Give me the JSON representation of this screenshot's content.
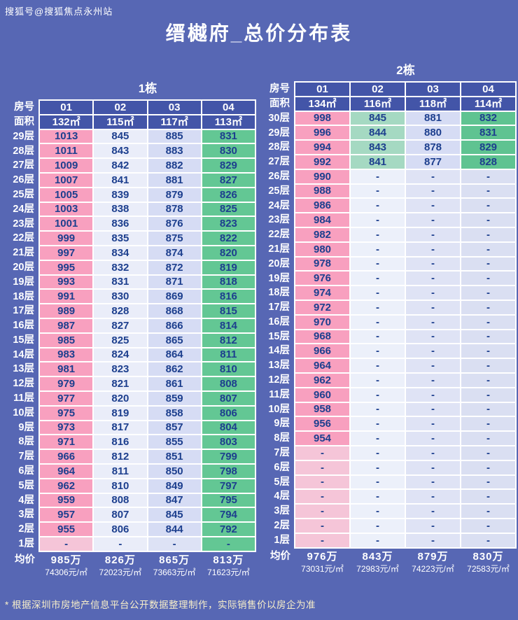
{
  "page": {
    "watermark": "搜狐号@搜狐焦点永州站",
    "title": "缙樾府_总价分布表",
    "footnote": "* 根据深圳市房地产信息平台公开数据整理制作，实际销售价以房企为准"
  },
  "labels": {
    "room": "房号",
    "area": "面积",
    "avg": "均价"
  },
  "colors": {
    "background": "#5767b4",
    "header_cell": "#4355a8",
    "cell_text": "#1d3f8e",
    "grid": "#ffffff",
    "pink": "#f8a0bf",
    "mint": "#a5d9c2",
    "green": "#63c794",
    "lavender": "#d6dcf4"
  },
  "chart_data": [
    {
      "type": "table",
      "title": "1栋",
      "rooms": [
        "01",
        "02",
        "03",
        "04"
      ],
      "areas": [
        "132㎡",
        "115㎡",
        "117㎡",
        "113㎡"
      ],
      "floors": [
        "29层",
        "28层",
        "27层",
        "26层",
        "25层",
        "24层",
        "23层",
        "22层",
        "21层",
        "20层",
        "19层",
        "18层",
        "17层",
        "16层",
        "15层",
        "14层",
        "13层",
        "12层",
        "11层",
        "10层",
        "9层",
        "8层",
        "7层",
        "6层",
        "5层",
        "4层",
        "3层",
        "2层",
        "1层"
      ],
      "rows": [
        [
          1013,
          845,
          885,
          831
        ],
        [
          1011,
          843,
          883,
          830
        ],
        [
          1009,
          842,
          882,
          829
        ],
        [
          1007,
          841,
          881,
          827
        ],
        [
          1005,
          839,
          879,
          826
        ],
        [
          1003,
          838,
          878,
          825
        ],
        [
          1001,
          836,
          876,
          823
        ],
        [
          999,
          835,
          875,
          822
        ],
        [
          997,
          834,
          874,
          820
        ],
        [
          995,
          832,
          872,
          819
        ],
        [
          993,
          831,
          871,
          818
        ],
        [
          991,
          830,
          869,
          816
        ],
        [
          989,
          828,
          868,
          815
        ],
        [
          987,
          827,
          866,
          814
        ],
        [
          985,
          825,
          865,
          812
        ],
        [
          983,
          824,
          864,
          811
        ],
        [
          981,
          823,
          862,
          810
        ],
        [
          979,
          821,
          861,
          808
        ],
        [
          977,
          820,
          859,
          807
        ],
        [
          975,
          819,
          858,
          806
        ],
        [
          973,
          817,
          857,
          804
        ],
        [
          971,
          816,
          855,
          803
        ],
        [
          966,
          812,
          851,
          799
        ],
        [
          964,
          811,
          850,
          798
        ],
        [
          962,
          810,
          849,
          797
        ],
        [
          959,
          808,
          847,
          795
        ],
        [
          957,
          807,
          845,
          794
        ],
        [
          955,
          806,
          844,
          792
        ],
        [
          "-",
          "-",
          "-",
          "-"
        ]
      ],
      "avg_total": [
        "985万",
        "826万",
        "865万",
        "813万"
      ],
      "avg_unit": [
        "74306元/㎡",
        "72023元/㎡",
        "73663元/㎡",
        "71623元/㎡"
      ],
      "fills": [
        "#f8a0bf",
        "#eaedf9",
        "#d6dcf4",
        "#63c794"
      ],
      "fills_empty": [
        "#f5c5d8",
        "#eaedf9",
        "#dde2f5",
        "#63c794"
      ]
    },
    {
      "type": "table",
      "title": "2栋",
      "rooms": [
        "01",
        "02",
        "03",
        "04"
      ],
      "areas": [
        "134㎡",
        "116㎡",
        "118㎡",
        "114㎡"
      ],
      "floors": [
        "30层",
        "29层",
        "28层",
        "27层",
        "26层",
        "25层",
        "24层",
        "23层",
        "22层",
        "21层",
        "20层",
        "19层",
        "18层",
        "17层",
        "16层",
        "15层",
        "14层",
        "13层",
        "12层",
        "11层",
        "10层",
        "9层",
        "8层",
        "7层",
        "6层",
        "5层",
        "4层",
        "3层",
        "2层",
        "1层"
      ],
      "rows": [
        [
          998,
          845,
          881,
          832
        ],
        [
          996,
          844,
          880,
          831
        ],
        [
          994,
          843,
          878,
          829
        ],
        [
          992,
          841,
          877,
          828
        ],
        [
          990,
          "-",
          "-",
          "-"
        ],
        [
          988,
          "-",
          "-",
          "-"
        ],
        [
          986,
          "-",
          "-",
          "-"
        ],
        [
          984,
          "-",
          "-",
          "-"
        ],
        [
          982,
          "-",
          "-",
          "-"
        ],
        [
          980,
          "-",
          "-",
          "-"
        ],
        [
          978,
          "-",
          "-",
          "-"
        ],
        [
          976,
          "-",
          "-",
          "-"
        ],
        [
          974,
          "-",
          "-",
          "-"
        ],
        [
          972,
          "-",
          "-",
          "-"
        ],
        [
          970,
          "-",
          "-",
          "-"
        ],
        [
          968,
          "-",
          "-",
          "-"
        ],
        [
          966,
          "-",
          "-",
          "-"
        ],
        [
          964,
          "-",
          "-",
          "-"
        ],
        [
          962,
          "-",
          "-",
          "-"
        ],
        [
          960,
          "-",
          "-",
          "-"
        ],
        [
          958,
          "-",
          "-",
          "-"
        ],
        [
          956,
          "-",
          "-",
          "-"
        ],
        [
          954,
          "-",
          "-",
          "-"
        ],
        [
          "-",
          "-",
          "-",
          "-"
        ],
        [
          "-",
          "-",
          "-",
          "-"
        ],
        [
          "-",
          "-",
          "-",
          "-"
        ],
        [
          "-",
          "-",
          "-",
          "-"
        ],
        [
          "-",
          "-",
          "-",
          "-"
        ],
        [
          "-",
          "-",
          "-",
          "-"
        ],
        [
          "-",
          "-",
          "-",
          "-"
        ]
      ],
      "avg_total": [
        "976万",
        "843万",
        "879万",
        "830万"
      ],
      "avg_unit": [
        "73031元/㎡",
        "72983元/㎡",
        "74223元/㎡",
        "72583元/㎡"
      ],
      "fills": [
        "#f8a0bf",
        "#a5d9c2",
        "#d6dcf4",
        "#5fc391"
      ],
      "fills_empty": [
        "#f5c5d8",
        "#ecf0fa",
        "#dfe3f5",
        "#dadff2"
      ]
    }
  ]
}
